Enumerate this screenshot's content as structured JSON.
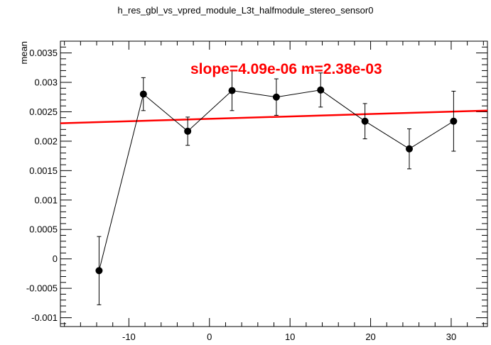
{
  "chart_data": {
    "type": "scatter",
    "title": "h_res_gbl_vs_vpred_module_L3t_halfmodule_stereo_sensor0",
    "xlabel": "",
    "ylabel": "mean",
    "xlim": [
      -18.5,
      34.5
    ],
    "ylim": [
      -0.00115,
      0.0037
    ],
    "x_ticks": [
      -10,
      0,
      10,
      20,
      30
    ],
    "y_ticks": [
      -0.001,
      -0.0005,
      0,
      0.0005,
      0.001,
      0.0015,
      0.002,
      0.0025,
      0.003,
      0.0035
    ],
    "y_tick_labels": [
      "-0.001",
      "-0.0005",
      "0",
      "0.0005",
      "0.001",
      "0.0015",
      "0.002",
      "0.0025",
      "0.003",
      "0.0035"
    ],
    "x_tick_labels": [
      "-10",
      "0",
      "10",
      "20",
      "30"
    ],
    "grid": false,
    "series": [
      {
        "x": [
          -13.7,
          -8.2,
          -2.7,
          2.8,
          8.3,
          13.8,
          19.3,
          24.8,
          30.3
        ],
        "y": [
          -0.0002,
          0.0028,
          0.00217,
          0.00286,
          0.00275,
          0.00287,
          0.00234,
          0.00187,
          0.00234
        ],
        "yerr": [
          0.00058,
          0.00028,
          0.00024,
          0.00034,
          0.00031,
          0.00029,
          0.0003,
          0.00034,
          0.00051
        ],
        "marker": "filled-circle",
        "color": "#000000"
      }
    ],
    "fit": {
      "slope": 4.09e-06,
      "intercept": 0.00238,
      "color": "#ff0000"
    },
    "annotation": "slope=4.09e-06 m=2.38e-03",
    "annotation_color": "#ff0000"
  }
}
